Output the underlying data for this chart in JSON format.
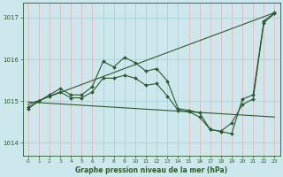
{
  "title": "Graphe pression niveau de la mer (hPa)",
  "background_color": "#cce8ec",
  "grid_color_h": "#a8d4d8",
  "grid_color_v": "#e8b4b8",
  "line_color": "#2d5a2d",
  "ylim": [
    1013.7,
    1017.35
  ],
  "xlim": [
    -0.5,
    23.5
  ],
  "yticks": [
    1014,
    1015,
    1016,
    1017
  ],
  "xticks": [
    0,
    1,
    2,
    3,
    4,
    5,
    6,
    7,
    8,
    9,
    10,
    11,
    12,
    13,
    14,
    15,
    16,
    17,
    18,
    19,
    20,
    21,
    22,
    23
  ],
  "series1": {
    "x": [
      0,
      1,
      2,
      3,
      4,
      5,
      6,
      7,
      8,
      9,
      10,
      11,
      12,
      13,
      14,
      15,
      16,
      17,
      18,
      19,
      20,
      21,
      22,
      23
    ],
    "y": [
      1014.85,
      1015.0,
      1015.15,
      1015.3,
      1015.15,
      1015.15,
      1015.35,
      1015.95,
      1015.82,
      1016.05,
      1015.92,
      1015.72,
      1015.78,
      1015.48,
      1014.82,
      1014.78,
      1014.72,
      1014.32,
      1014.27,
      1014.22,
      1015.05,
      1015.15,
      1016.92,
      1017.12
    ]
  },
  "series2": {
    "x": [
      0,
      1,
      2,
      3,
      4,
      5,
      6,
      7,
      8,
      9,
      10,
      11,
      12,
      13,
      14,
      15,
      16,
      17,
      18,
      19,
      20,
      21,
      22,
      23
    ],
    "y": [
      1014.82,
      1015.0,
      1015.12,
      1015.22,
      1015.08,
      1015.08,
      1015.22,
      1015.55,
      1015.55,
      1015.62,
      1015.55,
      1015.38,
      1015.42,
      1015.12,
      1014.78,
      1014.75,
      1014.62,
      1014.32,
      1014.28,
      1014.48,
      1014.92,
      1015.05,
      1016.88,
      1017.1
    ]
  },
  "diag1": {
    "x": [
      0,
      23
    ],
    "y": [
      1014.92,
      1017.12
    ]
  },
  "diag2": {
    "x": [
      0,
      23
    ],
    "y": [
      1014.98,
      1014.62
    ]
  }
}
